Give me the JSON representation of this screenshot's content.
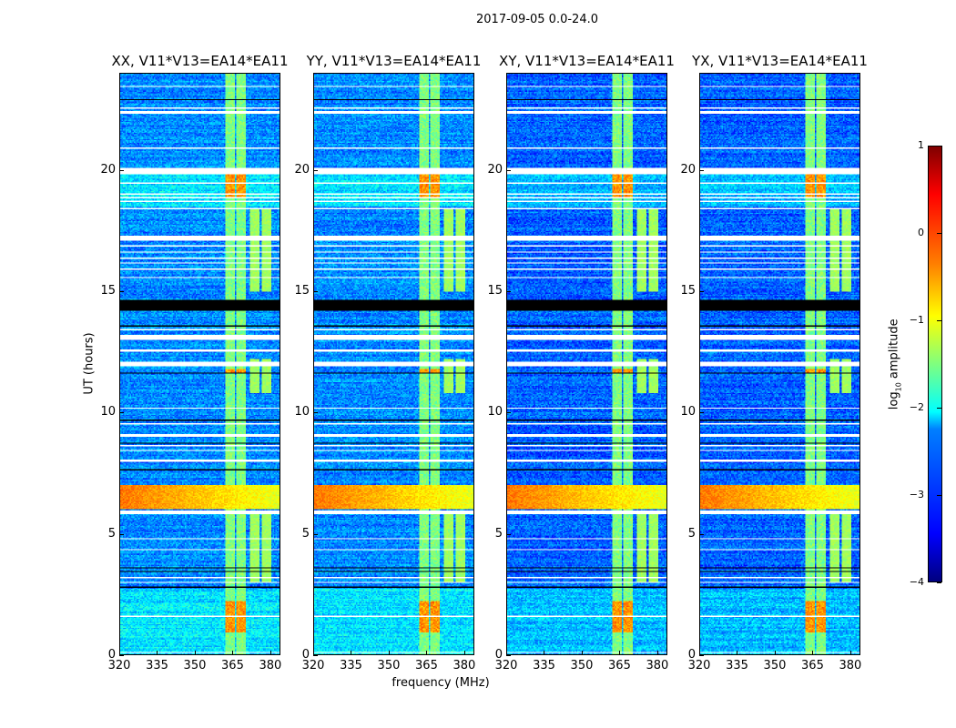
{
  "chart_data": {
    "type": "heatmap",
    "title": "2017-09-05 0.0-24.0",
    "xlabel": "frequency (MHz)",
    "ylabel": "UT (hours)",
    "xlim": [
      320,
      384
    ],
    "ylim": [
      0,
      24
    ],
    "xticks": [
      320,
      335,
      350,
      365,
      380
    ],
    "yticks": [
      0,
      5,
      10,
      15,
      20
    ],
    "panels": [
      {
        "title": "XX, V11*V13=EA14*EA11",
        "background_log10": -2.7,
        "seed": 1
      },
      {
        "title": "YY, V11*V13=EA14*EA11",
        "background_log10": -2.7,
        "seed": 2
      },
      {
        "title": "XY, V11*V13=EA14*EA11",
        "background_log10": -2.9,
        "seed": 3
      },
      {
        "title": "YX, V11*V13=EA14*EA11",
        "background_log10": -2.9,
        "seed": 4
      }
    ],
    "colorbar": {
      "label_prefix": "log",
      "label_sub": "10",
      "label_suffix": " amplitude",
      "range": [
        -4,
        1
      ],
      "ticks": [
        1,
        0,
        -1,
        -2,
        -3,
        -4
      ],
      "tick_labels": [
        "1",
        "0",
        "−1",
        "−2",
        "−3",
        "−4"
      ],
      "colormap": "jet"
    },
    "features": {
      "persistent_rfi_channels_mhz": [
        [
          362.5,
          366.0
        ],
        [
          366.8,
          370.5
        ]
      ],
      "persistent_rfi_level": -1.5,
      "intermittent_rfi_channels_mhz": [
        [
          372.0,
          376.0
        ],
        [
          377.0,
          380.5
        ]
      ],
      "intermittent_rfi_hours": [
        [
          15.0,
          18.4
        ],
        [
          10.8,
          12.2
        ],
        [
          3.0,
          5.9
        ]
      ],
      "intermittent_rfi_level": -1.4,
      "broadband_event_hours": [
        6.0,
        7.0
      ],
      "broadband_event_level": -0.2,
      "elevated_background_hours": [
        [
          18.5,
          20.0
        ],
        [
          0.0,
          2.7
        ]
      ],
      "strong_channel_hours": [
        [
          18.9,
          19.9
        ],
        [
          0.9,
          2.2
        ],
        [
          11.6,
          11.8
        ]
      ],
      "flagged_white_hours": [
        [
          23.45,
          23.5
        ],
        [
          22.55,
          22.6
        ],
        [
          22.35,
          22.45
        ],
        [
          20.9,
          20.95
        ],
        [
          19.85,
          20.1
        ],
        [
          19.45,
          19.5
        ],
        [
          19.0,
          19.05
        ],
        [
          18.85,
          18.9
        ],
        [
          18.7,
          18.75
        ],
        [
          18.4,
          18.45
        ],
        [
          17.1,
          17.3
        ],
        [
          16.85,
          16.9
        ],
        [
          16.6,
          16.65
        ],
        [
          16.35,
          16.4
        ],
        [
          16.15,
          16.2
        ],
        [
          15.9,
          15.95
        ],
        [
          15.55,
          15.6
        ],
        [
          13.4,
          13.45
        ],
        [
          13.0,
          13.2
        ],
        [
          12.5,
          12.6
        ],
        [
          11.9,
          12.1
        ],
        [
          10.15,
          10.2
        ],
        [
          9.5,
          9.55
        ],
        [
          9.0,
          9.1
        ],
        [
          8.6,
          8.65
        ],
        [
          8.4,
          8.45
        ],
        [
          7.95,
          8.05
        ],
        [
          5.8,
          5.95
        ],
        [
          4.75,
          4.8
        ],
        [
          4.3,
          4.35
        ],
        [
          3.15,
          3.2
        ],
        [
          2.95,
          3.0
        ],
        [
          1.55,
          1.6
        ],
        [
          0.03,
          0.08
        ]
      ],
      "flagged_black_hours": [
        [
          22.9,
          22.95
        ],
        [
          14.2,
          14.65
        ],
        [
          13.55,
          13.6
        ],
        [
          11.6,
          11.65
        ],
        [
          9.65,
          9.7
        ],
        [
          8.7,
          8.75
        ],
        [
          7.6,
          7.65
        ],
        [
          3.55,
          3.6
        ],
        [
          3.4,
          3.45
        ],
        [
          2.75,
          2.8
        ]
      ]
    }
  }
}
